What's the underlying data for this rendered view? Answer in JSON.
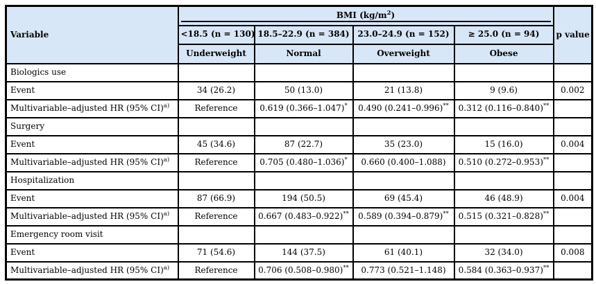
{
  "colors": {
    "header_bg": "#d8e7f7",
    "border": "#000000"
  },
  "table": {
    "header": {
      "variable": "Variable",
      "bmi_pre": "BMI (kg/m",
      "bmi_sup": "2",
      "bmi_post": ")",
      "p_value": "p value",
      "columns": [
        "<18.5 (n = 130)",
        "18.5–22.9 (n = 384)",
        "23.0–24.9 (n = 152)",
        "≥ 25.0 (n = 94)"
      ],
      "labels": [
        "Underweight",
        "Normal",
        "Overweight",
        "Obese"
      ]
    },
    "row_labels": {
      "event": "Event",
      "hr": {
        "t": "Multivariable–adjusted HR (95% CI)",
        "s": "a)"
      }
    },
    "sections": [
      {
        "name": "Biologics use",
        "event": {
          "values": [
            "34 (26.2)",
            "50 (13.0)",
            "21 (13.8)",
            "9 (9.6)"
          ],
          "p": "0.002"
        },
        "hr": {
          "values": [
            {
              "t": "Reference"
            },
            {
              "t": "0.619 (0.366–1.047)",
              "s": "*"
            },
            {
              "t": "0.490 (0.241–0.996)",
              "s": "**"
            },
            {
              "t": "0.312 (0.116–0.840)",
              "s": "**"
            }
          ]
        }
      },
      {
        "name": "Surgery",
        "event": {
          "values": [
            "45 (34.6)",
            "87 (22.7)",
            "35 (23.0)",
            "15 (16.0)"
          ],
          "p": "0.004"
        },
        "hr": {
          "values": [
            {
              "t": "Reference"
            },
            {
              "t": "0.705 (0.480–1.036)",
              "s": "*"
            },
            {
              "t": "0.660 (0.400–1.088)"
            },
            {
              "t": "0.510 (0.272–0.953)",
              "s": "**"
            }
          ]
        }
      },
      {
        "name": "Hospitalization",
        "event": {
          "values": [
            "87 (66.9)",
            "194 (50.5)",
            "69 (45.4)",
            "46 (48.9)"
          ],
          "p": "0.004"
        },
        "hr": {
          "values": [
            {
              "t": "Reference"
            },
            {
              "t": "0.667 (0.483–0.922)",
              "s": "**"
            },
            {
              "t": "0.589 (0.394–0.879)",
              "s": "**"
            },
            {
              "t": "0.515 (0.321–0.828)",
              "s": "**"
            }
          ]
        }
      },
      {
        "name": "Emergency room visit",
        "event": {
          "values": [
            "71 (54.6)",
            "144 (37.5)",
            "61 (40.1)",
            "32 (34.0)"
          ],
          "p": "0.008"
        },
        "hr": {
          "values": [
            {
              "t": "Reference"
            },
            {
              "t": "0.706 (0.508–0.980)",
              "s": "**"
            },
            {
              "t": "0.773 (0.521–1.148)"
            },
            {
              "t": "0.584 (0.363–0.937)",
              "s": "**"
            }
          ]
        }
      }
    ]
  }
}
